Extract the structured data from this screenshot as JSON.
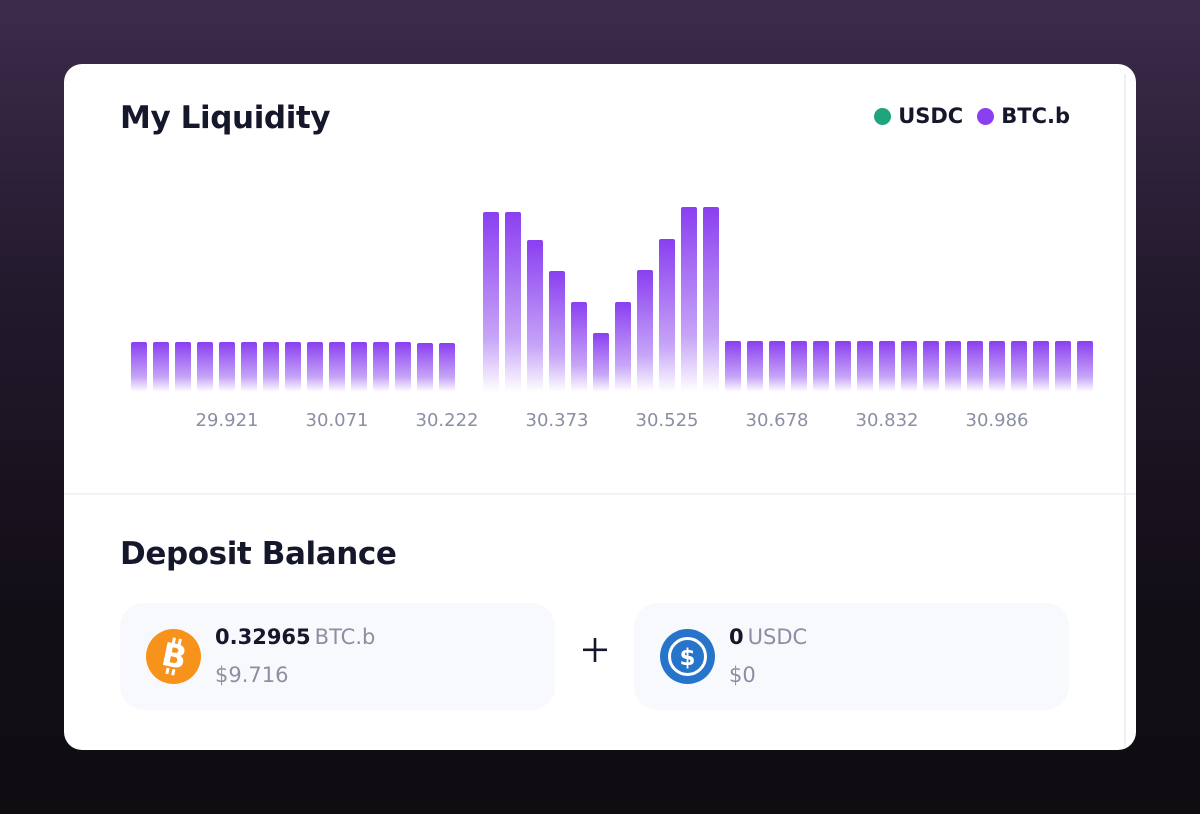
{
  "liquidity": {
    "title": "My Liquidity",
    "legend": [
      {
        "label": "USDC",
        "color": "#1fa57d"
      },
      {
        "label": "BTC.b",
        "color": "#8a3ff0"
      }
    ]
  },
  "chart_data": {
    "type": "bar",
    "xticks": [
      "29.921",
      "30.071",
      "30.222",
      "30.373",
      "30.525",
      "30.678",
      "30.832",
      "30.986"
    ],
    "series": [
      {
        "name": "BTC.b",
        "color": "#8a3ff0",
        "values": [
          50,
          50,
          50,
          50,
          50,
          50,
          50,
          50,
          50,
          50,
          50,
          50,
          50,
          49,
          49,
          0,
          180,
          180,
          152,
          121,
          90,
          59,
          90,
          122,
          153,
          185,
          185,
          51,
          51,
          51,
          51,
          51,
          51,
          51,
          51,
          51,
          51,
          51,
          51,
          51,
          51,
          51,
          51,
          51
        ]
      }
    ],
    "grid": false,
    "legend_position": "top-right"
  },
  "deposit": {
    "title": "Deposit Balance",
    "plus_icon": "plus-icon",
    "tokens": [
      {
        "amount": "0.32965",
        "unit": "BTC.b",
        "usd": "$9.716",
        "icon": "bitcoin-icon",
        "color": "#f7931a"
      },
      {
        "amount": "0",
        "unit": "USDC",
        "usd": "$0",
        "icon": "usdc-icon",
        "color": "#2775ca"
      }
    ]
  }
}
